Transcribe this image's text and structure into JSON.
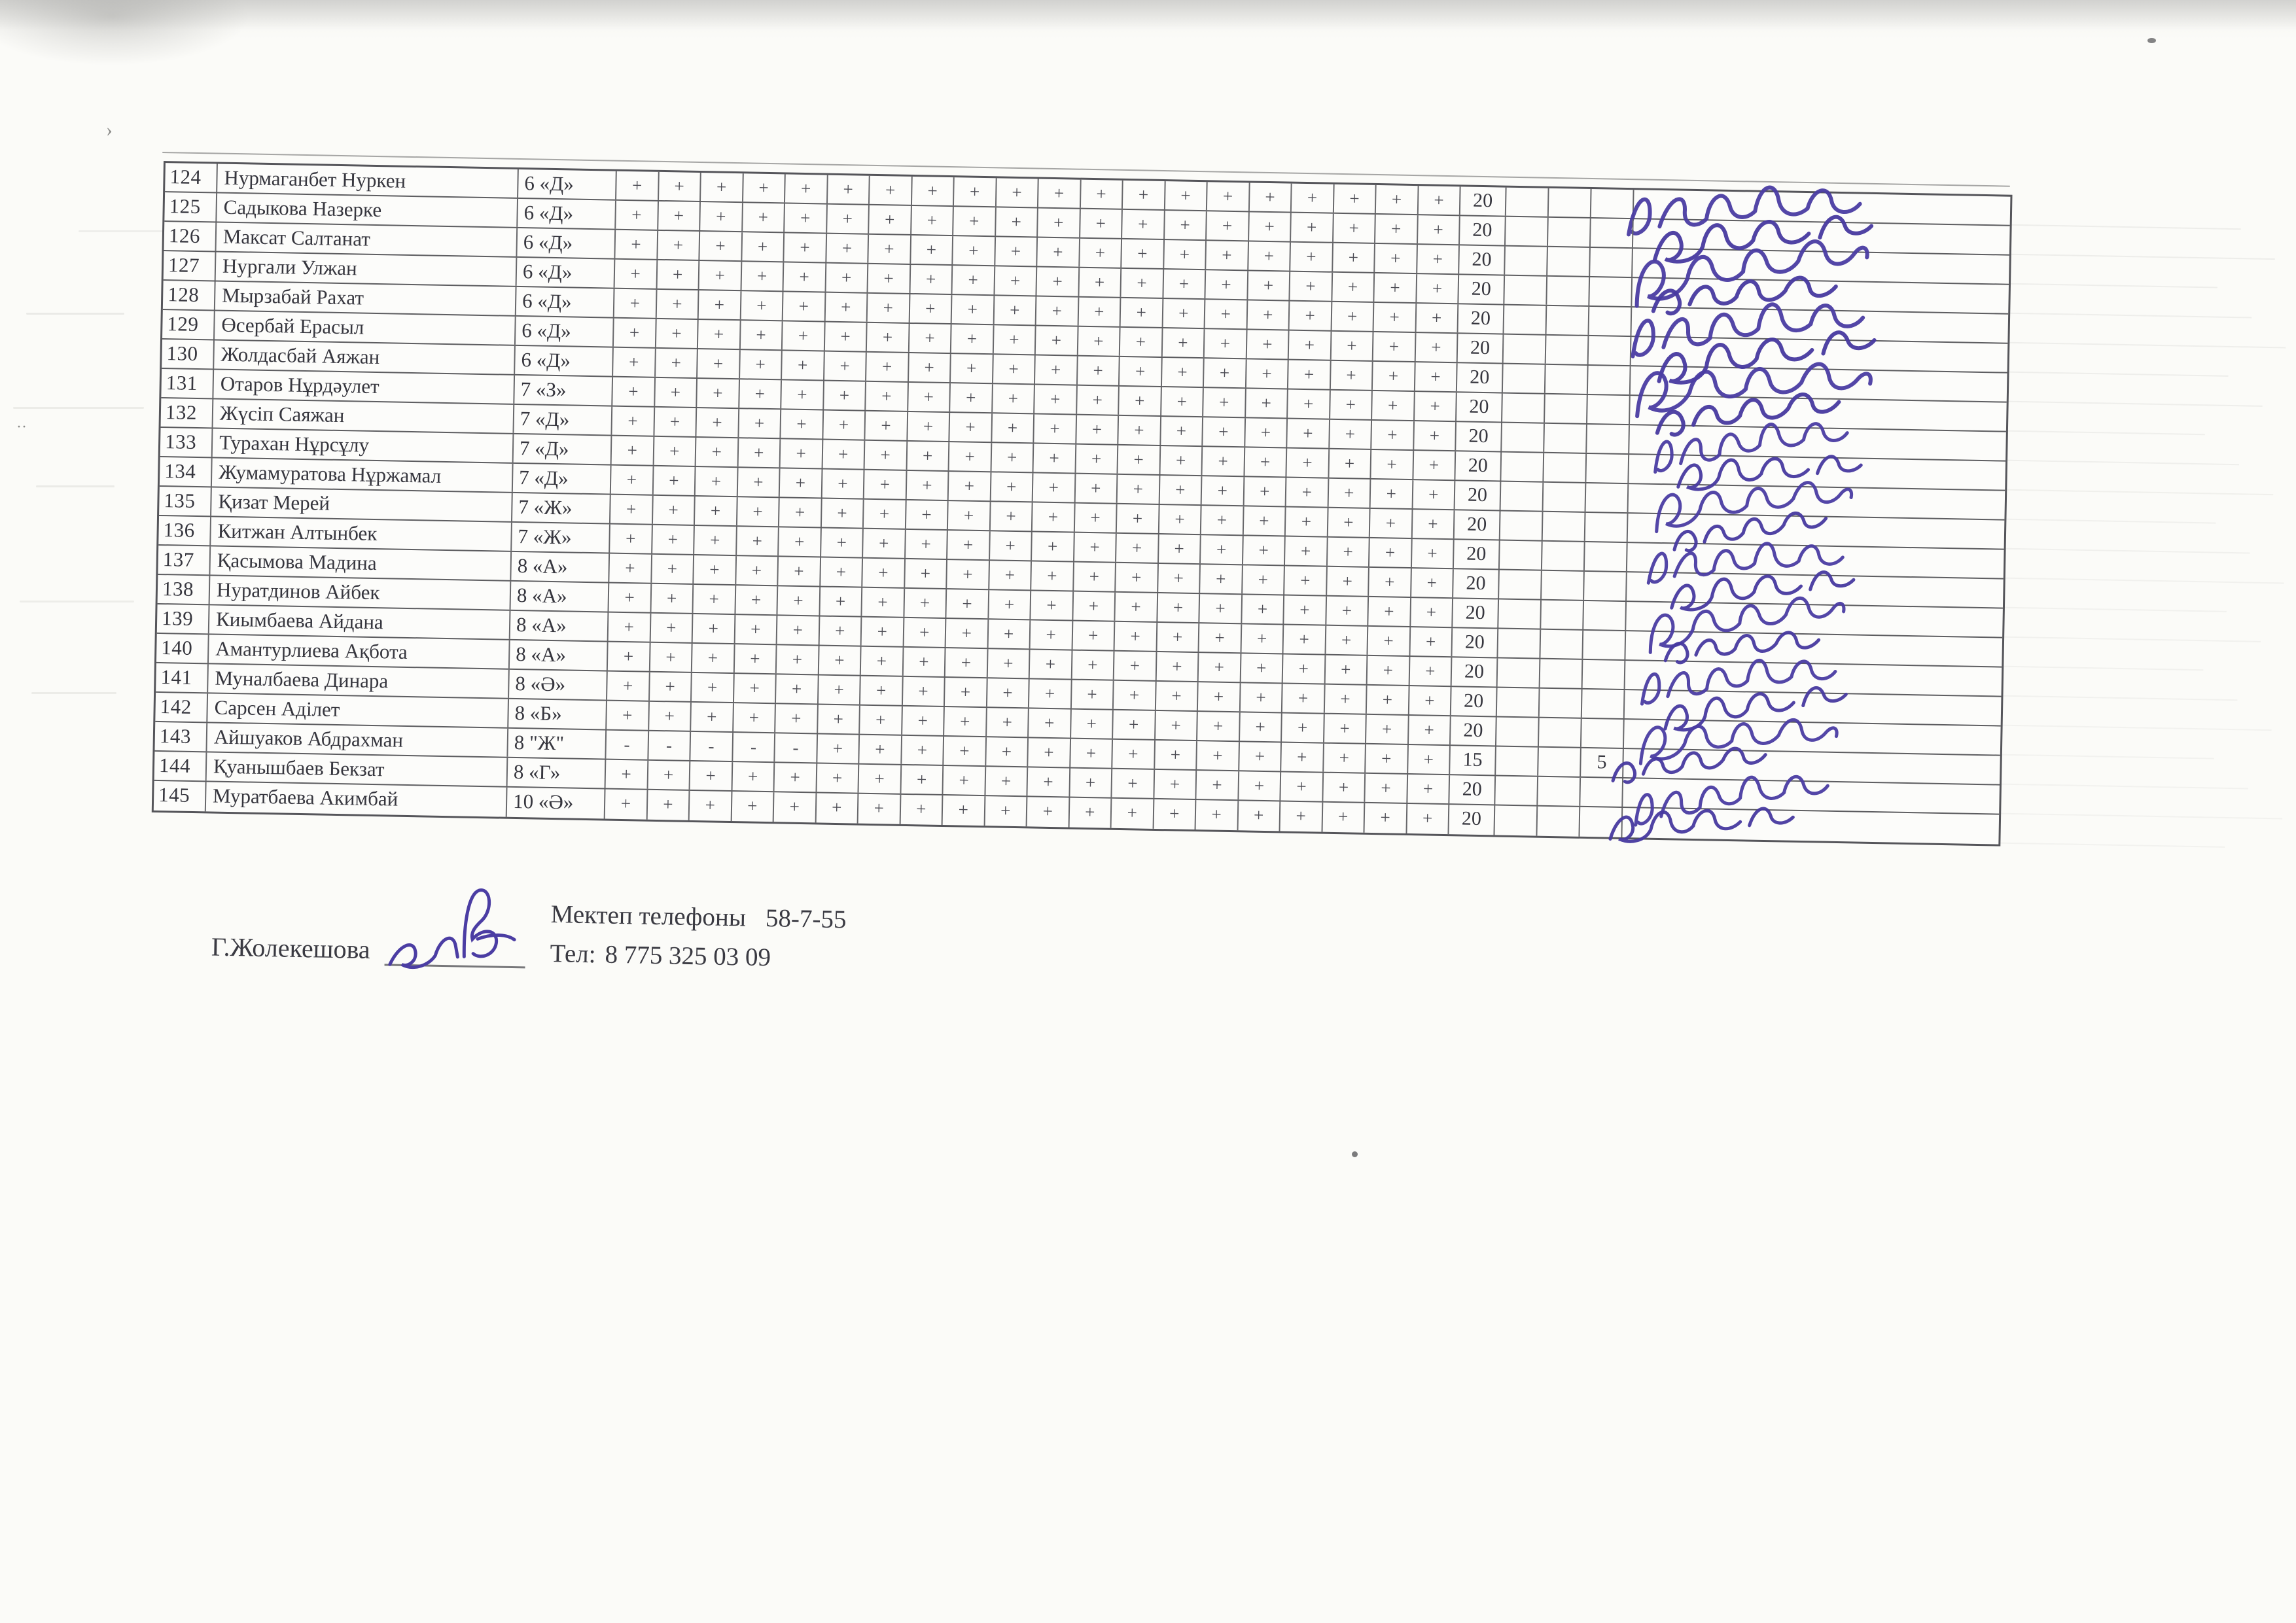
{
  "document": {
    "kind": "scanned attendance sheet",
    "ink_color": "#4b3da3",
    "paper_color": "#fbfbf8",
    "line_color": "#5d5d60"
  },
  "table": {
    "mark_columns": 20,
    "rows": [
      {
        "num": "124",
        "name": "Нурмаганбет Нуркен",
        "cls": "6 «Д»",
        "marks": [
          "+",
          "+",
          "+",
          "+",
          "+",
          "+",
          "+",
          "+",
          "+",
          "+",
          "+",
          "+",
          "+",
          "+",
          "+",
          "+",
          "+",
          "+",
          "+",
          "+"
        ],
        "total": "20",
        "c1": "",
        "c2": "",
        "c3": "",
        "signature": true
      },
      {
        "num": "125",
        "name": "Садыкова Назерке",
        "cls": "6 «Д»",
        "marks": [
          "+",
          "+",
          "+",
          "+",
          "+",
          "+",
          "+",
          "+",
          "+",
          "+",
          "+",
          "+",
          "+",
          "+",
          "+",
          "+",
          "+",
          "+",
          "+",
          "+"
        ],
        "total": "20",
        "c1": "",
        "c2": "",
        "c3": "",
        "signature": true
      },
      {
        "num": "126",
        "name": "Максат Салтанат",
        "cls": "6 «Д»",
        "marks": [
          "+",
          "+",
          "+",
          "+",
          "+",
          "+",
          "+",
          "+",
          "+",
          "+",
          "+",
          "+",
          "+",
          "+",
          "+",
          "+",
          "+",
          "+",
          "+",
          "+"
        ],
        "total": "20",
        "c1": "",
        "c2": "",
        "c3": "",
        "signature": true
      },
      {
        "num": "127",
        "name": "Нургали Улжан",
        "cls": "6 «Д»",
        "marks": [
          "+",
          "+",
          "+",
          "+",
          "+",
          "+",
          "+",
          "+",
          "+",
          "+",
          "+",
          "+",
          "+",
          "+",
          "+",
          "+",
          "+",
          "+",
          "+",
          "+"
        ],
        "total": "20",
        "c1": "",
        "c2": "",
        "c3": "",
        "signature": true
      },
      {
        "num": "128",
        "name": "Мырзабай Рахат",
        "cls": "6 «Д»",
        "marks": [
          "+",
          "+",
          "+",
          "+",
          "+",
          "+",
          "+",
          "+",
          "+",
          "+",
          "+",
          "+",
          "+",
          "+",
          "+",
          "+",
          "+",
          "+",
          "+",
          "+"
        ],
        "total": "20",
        "c1": "",
        "c2": "",
        "c3": "",
        "signature": true
      },
      {
        "num": "129",
        "name": "Өсербай Ерасыл",
        "cls": "6 «Д»",
        "marks": [
          "+",
          "+",
          "+",
          "+",
          "+",
          "+",
          "+",
          "+",
          "+",
          "+",
          "+",
          "+",
          "+",
          "+",
          "+",
          "+",
          "+",
          "+",
          "+",
          "+"
        ],
        "total": "20",
        "c1": "",
        "c2": "",
        "c3": "",
        "signature": true
      },
      {
        "num": "130",
        "name": "Жолдасбай Аяжан",
        "cls": "6 «Д»",
        "marks": [
          "+",
          "+",
          "+",
          "+",
          "+",
          "+",
          "+",
          "+",
          "+",
          "+",
          "+",
          "+",
          "+",
          "+",
          "+",
          "+",
          "+",
          "+",
          "+",
          "+"
        ],
        "total": "20",
        "c1": "",
        "c2": "",
        "c3": "",
        "signature": true
      },
      {
        "num": "131",
        "name": "Отаров Нұрдәулет",
        "cls": "7 «З»",
        "marks": [
          "+",
          "+",
          "+",
          "+",
          "+",
          "+",
          "+",
          "+",
          "+",
          "+",
          "+",
          "+",
          "+",
          "+",
          "+",
          "+",
          "+",
          "+",
          "+",
          "+"
        ],
        "total": "20",
        "c1": "",
        "c2": "",
        "c3": "",
        "signature": true
      },
      {
        "num": "132",
        "name": "Жүсіп Саяжан",
        "cls": "7 «Д»",
        "marks": [
          "+",
          "+",
          "+",
          "+",
          "+",
          "+",
          "+",
          "+",
          "+",
          "+",
          "+",
          "+",
          "+",
          "+",
          "+",
          "+",
          "+",
          "+",
          "+",
          "+"
        ],
        "total": "20",
        "c1": "",
        "c2": "",
        "c3": "",
        "signature": true
      },
      {
        "num": "133",
        "name": "Турахан Нұрсұлу",
        "cls": "7 «Д»",
        "marks": [
          "+",
          "+",
          "+",
          "+",
          "+",
          "+",
          "+",
          "+",
          "+",
          "+",
          "+",
          "+",
          "+",
          "+",
          "+",
          "+",
          "+",
          "+",
          "+",
          "+"
        ],
        "total": "20",
        "c1": "",
        "c2": "",
        "c3": "",
        "signature": true
      },
      {
        "num": "134",
        "name": "Жумамуратова Нұржамал",
        "cls": "7 «Д»",
        "marks": [
          "+",
          "+",
          "+",
          "+",
          "+",
          "+",
          "+",
          "+",
          "+",
          "+",
          "+",
          "+",
          "+",
          "+",
          "+",
          "+",
          "+",
          "+",
          "+",
          "+"
        ],
        "total": "20",
        "c1": "",
        "c2": "",
        "c3": "",
        "signature": true
      },
      {
        "num": "135",
        "name": "Қизат Мерей",
        "cls": "7 «Ж»",
        "marks": [
          "+",
          "+",
          "+",
          "+",
          "+",
          "+",
          "+",
          "+",
          "+",
          "+",
          "+",
          "+",
          "+",
          "+",
          "+",
          "+",
          "+",
          "+",
          "+",
          "+"
        ],
        "total": "20",
        "c1": "",
        "c2": "",
        "c3": "",
        "signature": true
      },
      {
        "num": "136",
        "name": "Китжан Алтынбек",
        "cls": "7 «Ж»",
        "marks": [
          "+",
          "+",
          "+",
          "+",
          "+",
          "+",
          "+",
          "+",
          "+",
          "+",
          "+",
          "+",
          "+",
          "+",
          "+",
          "+",
          "+",
          "+",
          "+",
          "+"
        ],
        "total": "20",
        "c1": "",
        "c2": "",
        "c3": "",
        "signature": true
      },
      {
        "num": "137",
        "name": "Қасымова Мадина",
        "cls": "8 «А»",
        "marks": [
          "+",
          "+",
          "+",
          "+",
          "+",
          "+",
          "+",
          "+",
          "+",
          "+",
          "+",
          "+",
          "+",
          "+",
          "+",
          "+",
          "+",
          "+",
          "+",
          "+"
        ],
        "total": "20",
        "c1": "",
        "c2": "",
        "c3": "",
        "signature": true
      },
      {
        "num": "138",
        "name": "Нуратдинов Айбек",
        "cls": "8 «А»",
        "marks": [
          "+",
          "+",
          "+",
          "+",
          "+",
          "+",
          "+",
          "+",
          "+",
          "+",
          "+",
          "+",
          "+",
          "+",
          "+",
          "+",
          "+",
          "+",
          "+",
          "+"
        ],
        "total": "20",
        "c1": "",
        "c2": "",
        "c3": "",
        "signature": true
      },
      {
        "num": "139",
        "name": "Киымбаева Айдана",
        "cls": "8 «А»",
        "marks": [
          "+",
          "+",
          "+",
          "+",
          "+",
          "+",
          "+",
          "+",
          "+",
          "+",
          "+",
          "+",
          "+",
          "+",
          "+",
          "+",
          "+",
          "+",
          "+",
          "+"
        ],
        "total": "20",
        "c1": "",
        "c2": "",
        "c3": "",
        "signature": true
      },
      {
        "num": "140",
        "name": "Амантурлиева Ақбота",
        "cls": "8 «А»",
        "marks": [
          "+",
          "+",
          "+",
          "+",
          "+",
          "+",
          "+",
          "+",
          "+",
          "+",
          "+",
          "+",
          "+",
          "+",
          "+",
          "+",
          "+",
          "+",
          "+",
          "+"
        ],
        "total": "20",
        "c1": "",
        "c2": "",
        "c3": "",
        "signature": true
      },
      {
        "num": "141",
        "name": "Муналбаева Динара",
        "cls": "8 «Ә»",
        "marks": [
          "+",
          "+",
          "+",
          "+",
          "+",
          "+",
          "+",
          "+",
          "+",
          "+",
          "+",
          "+",
          "+",
          "+",
          "+",
          "+",
          "+",
          "+",
          "+",
          "+"
        ],
        "total": "20",
        "c1": "",
        "c2": "",
        "c3": "",
        "signature": true
      },
      {
        "num": "142",
        "name": "Сарсен Аділет",
        "cls": "8 «Б»",
        "marks": [
          "+",
          "+",
          "+",
          "+",
          "+",
          "+",
          "+",
          "+",
          "+",
          "+",
          "+",
          "+",
          "+",
          "+",
          "+",
          "+",
          "+",
          "+",
          "+",
          "+"
        ],
        "total": "20",
        "c1": "",
        "c2": "",
        "c3": "",
        "signature": true
      },
      {
        "num": "143",
        "name": "Айшуаков Абдрахман",
        "cls": "8 \"Ж\"",
        "marks": [
          "-",
          "-",
          "-",
          "-",
          "-",
          "+",
          "+",
          "+",
          "+",
          "+",
          "+",
          "+",
          "+",
          "+",
          "+",
          "+",
          "+",
          "+",
          "+",
          "+"
        ],
        "total": "15",
        "c1": "",
        "c2": "",
        "c3": "5",
        "signature": true
      },
      {
        "num": "144",
        "name": "Қуанышбаев Бекзат",
        "cls": "8 «Г»",
        "marks": [
          "+",
          "+",
          "+",
          "+",
          "+",
          "+",
          "+",
          "+",
          "+",
          "+",
          "+",
          "+",
          "+",
          "+",
          "+",
          "+",
          "+",
          "+",
          "+",
          "+"
        ],
        "total": "20",
        "c1": "",
        "c2": "",
        "c3": "",
        "signature": true
      },
      {
        "num": "145",
        "name": "Муратбаева Акимбай",
        "cls": "10 «Ә»",
        "marks": [
          "+",
          "+",
          "+",
          "+",
          "+",
          "+",
          "+",
          "+",
          "+",
          "+",
          "+",
          "+",
          "+",
          "+",
          "+",
          "+",
          "+",
          "+",
          "+",
          "+"
        ],
        "total": "20",
        "c1": "",
        "c2": "",
        "c3": "",
        "signature": true
      }
    ]
  },
  "footer": {
    "name": "Г.Жолекешова",
    "phone_label": "Мектеп телефоны",
    "phone": "58-7-55",
    "tel_label": "Тел:",
    "tel": "8 775 325 03 09"
  }
}
